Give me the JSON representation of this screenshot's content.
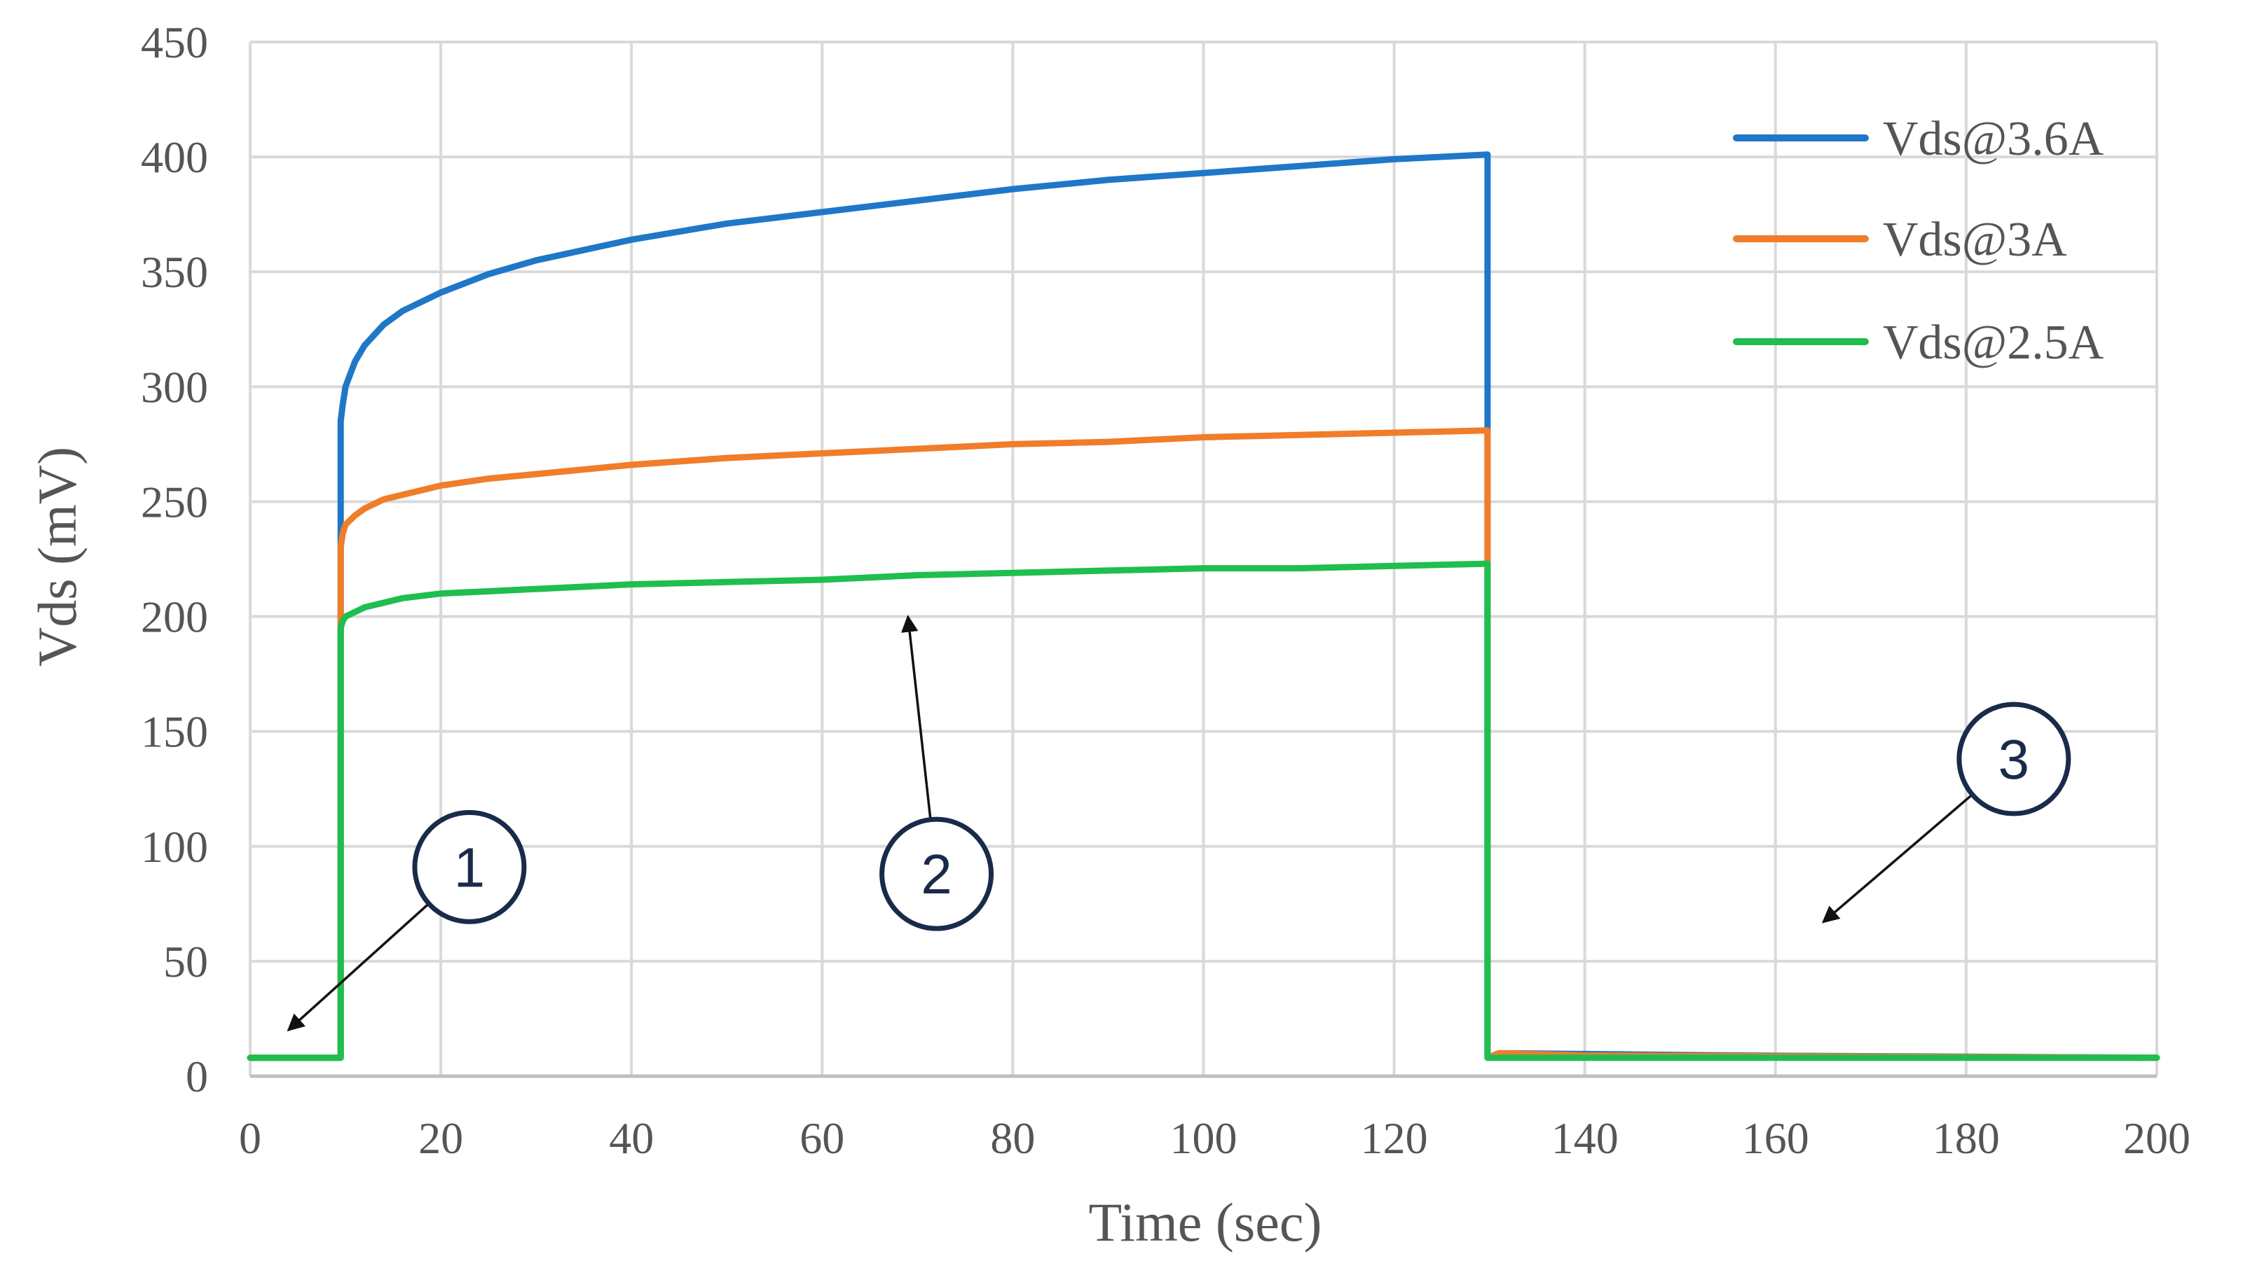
{
  "chart_data": {
    "type": "line",
    "xlabel": "Time (sec)",
    "ylabel": "Vds (mV)",
    "xlim": [
      0,
      200
    ],
    "ylim": [
      0,
      450
    ],
    "xticks": [
      0,
      20,
      40,
      60,
      80,
      100,
      120,
      140,
      160,
      180,
      200
    ],
    "yticks": [
      0,
      50,
      100,
      150,
      200,
      250,
      300,
      350,
      400,
      450
    ],
    "grid": true,
    "legend_position": "top-right",
    "series": [
      {
        "name": "Vds@3.6A",
        "color": "#1f77c8",
        "x": [
          0,
          9.5,
          9.5,
          9.7,
          10,
          11,
          12,
          14,
          16,
          20,
          25,
          30,
          40,
          50,
          60,
          70,
          80,
          90,
          100,
          110,
          120,
          129.8,
          129.8,
          131,
          156,
          200
        ],
        "y": [
          8,
          8,
          285,
          292,
          300,
          311,
          318,
          327,
          333,
          341,
          349,
          355,
          364,
          371,
          376,
          381,
          386,
          390,
          393,
          396,
          399,
          401,
          8,
          10,
          9,
          8
        ]
      },
      {
        "name": "Vds@3A",
        "color": "#f07d2a",
        "x": [
          0,
          9.5,
          9.5,
          9.7,
          10,
          11,
          12,
          14,
          16,
          20,
          25,
          30,
          40,
          50,
          60,
          70,
          80,
          90,
          100,
          110,
          120,
          129.8,
          129.8,
          131,
          140,
          200
        ],
        "y": [
          8,
          8,
          230,
          236,
          240,
          244,
          247,
          251,
          253,
          257,
          260,
          262,
          266,
          269,
          271,
          273,
          275,
          276,
          278,
          279,
          280,
          281,
          8,
          10,
          9,
          8
        ]
      },
      {
        "name": "Vds@2.5A",
        "color": "#1fbe4f",
        "x": [
          0,
          9.5,
          9.5,
          9.7,
          10,
          11,
          12,
          14,
          16,
          20,
          25,
          30,
          40,
          50,
          60,
          70,
          80,
          90,
          100,
          110,
          120,
          129.8,
          129.8,
          131,
          200
        ],
        "y": [
          8,
          8,
          195,
          198,
          200,
          202,
          204,
          206,
          208,
          210,
          211,
          212,
          214,
          215,
          216,
          218,
          219,
          220,
          221,
          221,
          222,
          223,
          8,
          8,
          8
        ]
      }
    ],
    "annotations": [
      {
        "label": "1",
        "circle": [
          23,
          91
        ],
        "arrow_to": [
          4,
          20
        ]
      },
      {
        "label": "2",
        "circle": [
          72,
          88
        ],
        "arrow_to": [
          69,
          200
        ]
      },
      {
        "label": "3",
        "circle": [
          185,
          138
        ],
        "arrow_to": [
          165,
          67
        ]
      }
    ]
  }
}
